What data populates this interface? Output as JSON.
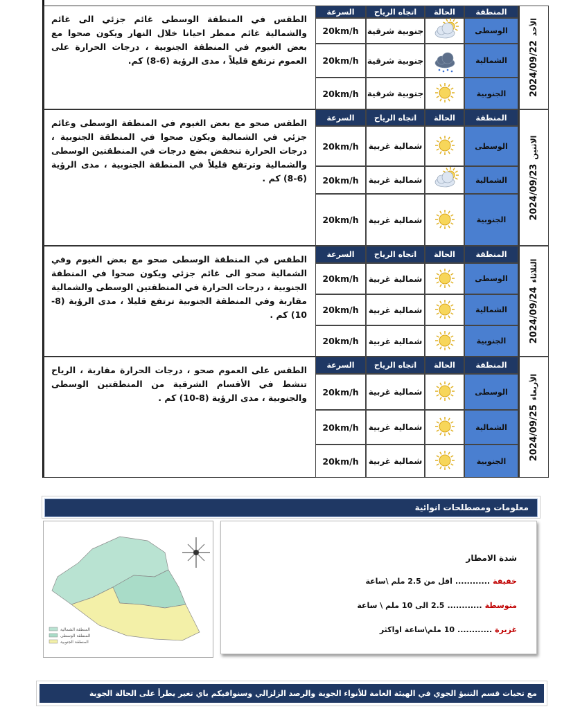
{
  "table_headers": {
    "region": "المنطقة",
    "condition": "الحالة",
    "wind_direction": "اتجاه الرياح",
    "speed": "السرعة"
  },
  "days": [
    {
      "day": "الأحد",
      "date": "2024/09/22",
      "description": "الطقس في المنطقة الوسطى غائم جزئي الى غائم والشمالية غائم ممطر احيانا خلال النهار ويكون صحوا مع بعض الغيوم في المنطقة الجنوبية ، درجات الحرارة على العموم ترتفع قليلاً ، مدى الرؤية (6-8) كم.",
      "rows": [
        {
          "region": "الوسطى",
          "wind_direction": "جنوبية شرقية",
          "speed": "20km/h"
        },
        {
          "region": "الشمالية",
          "wind_direction": "جنوبية شرقية",
          "speed": "20km/h"
        },
        {
          "region": "الجنوبية",
          "wind_direction": "جنوبية شرقية",
          "speed": "20km/h"
        }
      ]
    },
    {
      "day": "الاثنين",
      "date": "2024/09/23",
      "description": "الطقس صحو مع بعض الغيوم في المنطقة الوسطى وغائم جزئي في الشمالية ويكون صحوا في المنطقة الجنوبية ، درجات الحرارة تنخفض بضع درجات في المنطقتين الوسطى والشمالية وترتفع قليلاً في المنطقة الجنوبية ، مدى الرؤية (6-8) كم .",
      "rows": [
        {
          "region": "الوسطى",
          "wind_direction": "شمالية غربية",
          "speed": "20km/h"
        },
        {
          "region": "الشمالية",
          "wind_direction": "شمالية غربية",
          "speed": "20km/h"
        },
        {
          "region": "الجنوبية",
          "wind_direction": "شمالية غربية",
          "speed": "20km/h"
        }
      ]
    },
    {
      "day": "الثلاثاء",
      "date": "2024/09/24",
      "description": "الطقس في المنطقة الوسطى صحو مع بعض الغيوم وفي الشمالية صحو الى غائم جزئي ويكون صحوا في المنطقة الجنوبية ، درجات الحرارة في المنطقتين الوسطى والشمالية مقاربة وفي المنطقة الجنوبية ترتفع قليلا ، مدى الرؤية (8-10) كم .",
      "rows": [
        {
          "region": "الوسطى",
          "wind_direction": "شمالية غربية",
          "speed": "20km/h"
        },
        {
          "region": "الشمالية",
          "wind_direction": "شمالية غربية",
          "speed": "20km/h"
        },
        {
          "region": "الجنوبية",
          "wind_direction": "شمالية غربية",
          "speed": "20km/h"
        }
      ]
    },
    {
      "day": "الأربعاء",
      "date": "2024/09/25",
      "description": "الطقس على العموم صحو ، درجات الحرارة مقاربة ، الرياح تنشط في الأقسام الشرقية من المنطقتين الوسطى والجنوبية ، مدى الرؤية (8-10) كم .",
      "rows": [
        {
          "region": "الوسطى",
          "wind_direction": "شمالية غربية",
          "speed": "20km/h"
        },
        {
          "region": "الشمالية",
          "wind_direction": "شمالية غربية",
          "speed": "20km/h"
        },
        {
          "region": "الجنوبية",
          "wind_direction": "شمالية غربية",
          "speed": "20km/h"
        }
      ]
    }
  ],
  "info": {
    "title": "معلومات ومصطلحات انوائية",
    "rain_title": "شدة الامطار",
    "rain_levels": [
      {
        "label": "خفيفة",
        "dots": "............",
        "range": "اقل من 2.5 ملم \\ساعة"
      },
      {
        "label": "متوسطة",
        "dots": "............",
        "range": "2.5 الى 10 ملم \\ ساعة"
      },
      {
        "label": "غزيرة",
        "dots": "............",
        "range": "10 ملم\\ساعة اواكثر"
      }
    ]
  },
  "map_legend": [
    "المنطقة الشمالية",
    "المنطقة الوسطى",
    "المنطقة الجنوبية"
  ],
  "footer": "مع تحيات قسم التنبؤ الجوي في الهيئة العامة للأنواء الجوية والرصد الزلزالي وسنوافيكم باي تغير يطرأ على الحالة الجوية"
}
